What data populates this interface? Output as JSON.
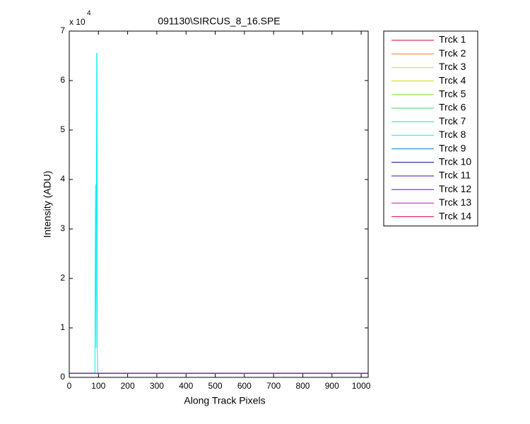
{
  "chart_data": {
    "type": "line",
    "title": "091130\\SIRCUS_8_16.SPE",
    "x_label": "Along Track Pixels",
    "y_label": "Intensity (ADU)",
    "y_multiplier": "x 10",
    "y_multiplier_exponent": "4",
    "x": [
      0,
      85,
      88,
      90,
      92,
      94,
      95,
      96,
      98,
      1024
    ],
    "xlim": [
      0,
      1024
    ],
    "xticks": [
      0,
      100,
      200,
      300,
      400,
      500,
      600,
      700,
      800,
      900,
      1000
    ],
    "ylim": [
      0,
      7
    ],
    "yticks": [
      0,
      1,
      2,
      3,
      4,
      5,
      6,
      7
    ],
    "grid": false,
    "legend": "outside-right",
    "series": [
      {
        "name": "Trck 1",
        "color": "#d8002a",
        "values": [
          0.08,
          0.08,
          0.08,
          0.08,
          0.08,
          0.08,
          0.08,
          0.08,
          0.08,
          0.08
        ]
      },
      {
        "name": "Trck 2",
        "color": "#ff7a1a",
        "values": [
          0.08,
          0.08,
          0.08,
          0.08,
          0.08,
          0.08,
          0.08,
          0.08,
          0.08,
          0.08
        ]
      },
      {
        "name": "Trck 3",
        "color": "#f0d800",
        "values": [
          0.08,
          0.08,
          0.08,
          0.08,
          0.08,
          0.08,
          0.08,
          0.08,
          0.08,
          0.08
        ]
      },
      {
        "name": "Trck 4",
        "color": "#c8e000",
        "values": [
          0.08,
          0.08,
          0.08,
          0.08,
          0.08,
          0.08,
          0.08,
          0.08,
          0.08,
          0.08
        ]
      },
      {
        "name": "Trck 5",
        "color": "#80e020",
        "values": [
          0.08,
          0.08,
          0.08,
          0.08,
          0.08,
          0.08,
          0.08,
          0.08,
          0.08,
          0.08
        ]
      },
      {
        "name": "Trck 6",
        "color": "#30e050",
        "values": [
          0.08,
          0.08,
          0.08,
          0.08,
          0.08,
          0.08,
          0.08,
          0.08,
          0.08,
          0.08
        ]
      },
      {
        "name": "Trck 7",
        "color": "#20e0a0",
        "values": [
          0.08,
          0.08,
          0.08,
          0.08,
          0.08,
          0.08,
          0.08,
          0.08,
          0.08,
          0.08
        ]
      },
      {
        "name": "Trck 8",
        "color": "#00f0f0",
        "values": [
          0.08,
          0.08,
          0.1,
          3.9,
          0.6,
          6.55,
          6.55,
          0.6,
          0.08,
          0.08
        ]
      },
      {
        "name": "Trck 9",
        "color": "#0080c8",
        "values": [
          0.08,
          0.08,
          0.08,
          0.08,
          0.08,
          0.08,
          0.08,
          0.08,
          0.08,
          0.08
        ]
      },
      {
        "name": "Trck 10",
        "color": "#000080",
        "values": [
          0.08,
          0.08,
          0.08,
          0.08,
          0.08,
          0.08,
          0.08,
          0.08,
          0.08,
          0.08
        ]
      },
      {
        "name": "Trck 11",
        "color": "#3010c8",
        "values": [
          0.08,
          0.08,
          0.08,
          0.08,
          0.08,
          0.08,
          0.08,
          0.08,
          0.08,
          0.08
        ]
      },
      {
        "name": "Trck 12",
        "color": "#8000c0",
        "values": [
          0.08,
          0.08,
          0.08,
          0.08,
          0.08,
          0.08,
          0.08,
          0.08,
          0.08,
          0.08
        ]
      },
      {
        "name": "Trck 13",
        "color": "#e000d0",
        "values": [
          0.08,
          0.08,
          0.08,
          0.08,
          0.08,
          0.08,
          0.08,
          0.08,
          0.08,
          0.08
        ]
      },
      {
        "name": "Trck 14",
        "color": "#e00060",
        "values": [
          0.08,
          0.08,
          0.08,
          0.08,
          0.08,
          0.08,
          0.08,
          0.08,
          0.08,
          0.08
        ]
      }
    ]
  }
}
